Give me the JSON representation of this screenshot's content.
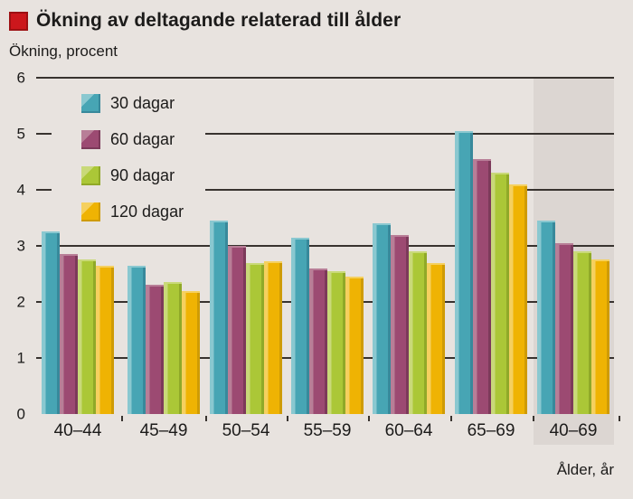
{
  "header": {
    "title": "Ökning av deltagande relaterad till ålder",
    "subtitle": "Ökning, procent"
  },
  "chart_data": {
    "type": "bar",
    "title": "Ökning av deltagande relaterad till ålder",
    "ylabel": "Ökning, procent",
    "xlabel": "Ålder, år",
    "categories": [
      "40–44",
      "45–49",
      "50–54",
      "55–59",
      "60–64",
      "65–69",
      "40–69"
    ],
    "series": [
      {
        "name": "30 dagar",
        "values": [
          3.25,
          2.65,
          3.45,
          3.15,
          3.4,
          5.05,
          3.45
        ]
      },
      {
        "name": "60 dagar",
        "values": [
          2.85,
          2.3,
          3.0,
          2.6,
          3.2,
          4.55,
          3.05
        ]
      },
      {
        "name": "90 dagar",
        "values": [
          2.75,
          2.35,
          2.7,
          2.55,
          2.9,
          4.3,
          2.9
        ]
      },
      {
        "name": "120 dagar",
        "values": [
          2.65,
          2.2,
          2.72,
          2.45,
          2.7,
          4.1,
          2.75
        ]
      }
    ],
    "ylim": [
      0,
      6
    ],
    "yticks": [
      0,
      1,
      2,
      3,
      4,
      5,
      6
    ],
    "grid": true,
    "legend_position": "inside top-left",
    "highlighted_category": "40–69"
  },
  "colors": {
    "background": "#e8e3df",
    "highlight_band": "#dcd6d2",
    "gridline": "#38332f",
    "text": "#1c1b1a",
    "title_bullet": "#cc171c",
    "series": [
      {
        "main": "#47a5b4",
        "light": "#8ac8d0",
        "dark": "#38899b"
      },
      {
        "main": "#9c4a72",
        "light": "#b87e97",
        "dark": "#7c3a5a"
      },
      {
        "main": "#abc737",
        "light": "#c9d979",
        "dark": "#90a928"
      },
      {
        "main": "#efb303",
        "light": "#f5d05f",
        "dark": "#cf9b05"
      }
    ]
  }
}
